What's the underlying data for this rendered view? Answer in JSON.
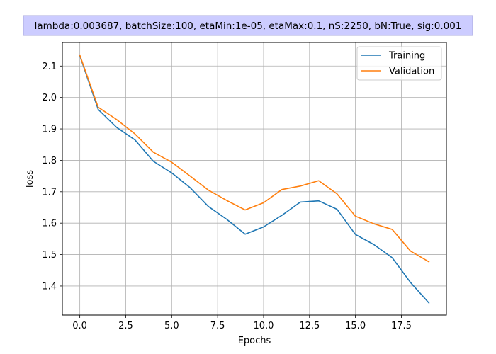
{
  "chart_data": {
    "type": "line",
    "title": "lambda:0.003687, batchSize:100, etaMin:1e-05, etaMax:0.1, nS:2250, bN:True, sig:0.001",
    "title_background": "#ccccff",
    "xlabel": "Epochs",
    "ylabel": "loss",
    "xlim": [
      -0.95,
      19.95
    ],
    "ylim": [
      1.3075,
      2.175
    ],
    "x_ticks": [
      0.0,
      2.5,
      5.0,
      7.5,
      10.0,
      12.5,
      15.0,
      17.5
    ],
    "x_tick_labels": [
      "0.0",
      "2.5",
      "5.0",
      "7.5",
      "10.0",
      "12.5",
      "15.0",
      "17.5"
    ],
    "y_ticks": [
      1.4,
      1.5,
      1.6,
      1.7,
      1.8,
      1.9,
      2.0,
      2.1
    ],
    "y_tick_labels": [
      "1.4",
      "1.5",
      "1.6",
      "1.7",
      "1.8",
      "1.9",
      "2.0",
      "2.1"
    ],
    "grid": true,
    "legend_position": "top-right",
    "x": [
      0,
      1,
      2,
      3,
      4,
      5,
      6,
      7,
      8,
      9,
      10,
      11,
      12,
      13,
      14,
      15,
      16,
      17,
      18,
      19
    ],
    "series": [
      {
        "name": "Training",
        "color": "#1f77b4",
        "values": [
          2.133,
          1.962,
          1.905,
          1.865,
          1.797,
          1.76,
          1.713,
          1.653,
          1.612,
          1.565,
          1.588,
          1.625,
          1.667,
          1.671,
          1.644,
          1.564,
          1.532,
          1.49,
          1.411,
          1.346
        ]
      },
      {
        "name": "Validation",
        "color": "#ff7f0e",
        "values": [
          2.135,
          1.969,
          1.93,
          1.884,
          1.826,
          1.794,
          1.75,
          1.705,
          1.672,
          1.642,
          1.665,
          1.707,
          1.718,
          1.735,
          1.693,
          1.622,
          1.598,
          1.58,
          1.511,
          1.477
        ]
      }
    ]
  }
}
